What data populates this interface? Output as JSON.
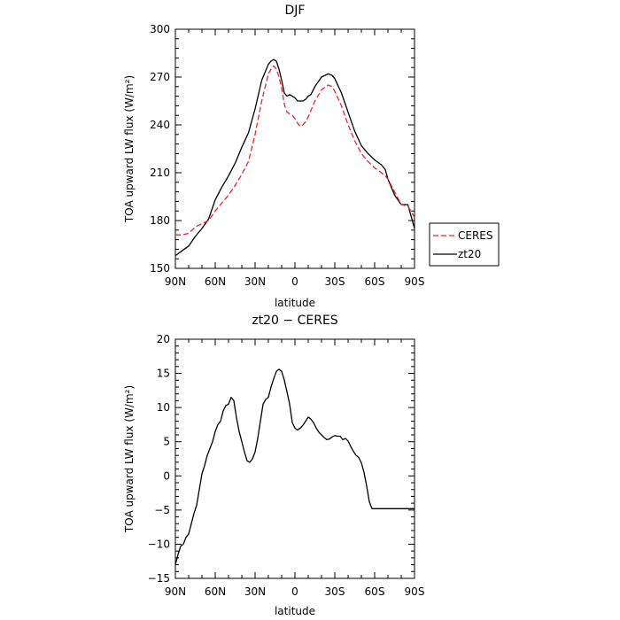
{
  "chart_data": [
    {
      "type": "line",
      "title": "DJF",
      "xlabel": "latitude",
      "ylabel": "TOA upward LW flux (W/m²)",
      "xlim": [
        -90,
        90
      ],
      "ylim": [
        150,
        300
      ],
      "xticks": [
        -90,
        -60,
        -30,
        0,
        30,
        60,
        90
      ],
      "xtick_labels": [
        "90N",
        "60N",
        "30N",
        "0",
        "30S",
        "60S",
        "90S"
      ],
      "yticks": [
        150,
        180,
        210,
        240,
        270,
        300
      ],
      "ytick_labels": [
        "150",
        "180",
        "210",
        "240",
        "270",
        "300"
      ],
      "legend_position": "right",
      "series": [
        {
          "name": "CERES",
          "color": "#e8262a",
          "dash": "dashed",
          "x": [
            -90,
            -85,
            -80,
            -75,
            -70,
            -65,
            -60,
            -55,
            -50,
            -45,
            -40,
            -35,
            -30,
            -25,
            -20,
            -18,
            -16,
            -14,
            -12,
            -10,
            -8,
            -6,
            -4,
            -2,
            0,
            2,
            4,
            6,
            8,
            10,
            12,
            15,
            20,
            25,
            28,
            30,
            35,
            40,
            45,
            50,
            55,
            60,
            65,
            68,
            70,
            75,
            80,
            85,
            88,
            90
          ],
          "values": [
            171,
            171,
            172,
            176,
            178,
            180,
            186,
            191,
            196,
            202,
            209,
            217,
            234,
            255,
            272,
            275,
            277,
            275,
            270,
            263,
            253,
            248,
            247,
            246,
            244,
            241,
            239,
            240,
            242,
            245,
            249,
            255,
            262,
            265,
            264,
            261,
            252,
            240,
            230,
            222,
            217,
            213,
            210,
            208,
            206,
            198,
            190,
            189,
            185,
            182
          ]
        },
        {
          "name": "zt20",
          "color": "#000000",
          "dash": "solid",
          "x": [
            -90,
            -85,
            -80,
            -75,
            -70,
            -65,
            -60,
            -55,
            -50,
            -45,
            -40,
            -35,
            -30,
            -25,
            -20,
            -18,
            -16,
            -14,
            -12,
            -10,
            -8,
            -6,
            -4,
            -2,
            0,
            2,
            4,
            6,
            8,
            10,
            12,
            15,
            20,
            25,
            28,
            30,
            35,
            40,
            45,
            50,
            55,
            60,
            65,
            68,
            70,
            75,
            80,
            85,
            88,
            90
          ],
          "values": [
            158,
            161,
            164,
            170,
            175,
            181,
            193,
            201,
            208,
            216,
            226,
            235,
            250,
            268,
            278,
            280,
            281,
            280,
            275,
            268,
            260,
            258,
            259,
            258,
            257,
            255,
            255,
            255,
            256,
            258,
            259,
            264,
            270,
            272,
            271,
            269,
            260,
            248,
            236,
            227,
            222,
            218,
            215,
            212,
            206,
            196,
            190,
            190,
            181,
            175
          ]
        }
      ]
    },
    {
      "type": "line",
      "title": "zt20 − CERES",
      "xlabel": "latitude",
      "ylabel": "TOA upward LW flux (W/m²)",
      "xlim": [
        -90,
        90
      ],
      "ylim": [
        -15,
        20
      ],
      "xticks": [
        -90,
        -60,
        -30,
        0,
        30,
        60,
        90
      ],
      "xtick_labels": [
        "90N",
        "60N",
        "30N",
        "0",
        "30S",
        "60S",
        "90S"
      ],
      "yticks": [
        -15,
        -10,
        -5,
        0,
        5,
        10,
        15,
        20
      ],
      "ytick_labels": [
        "−15",
        "−10",
        "−5",
        "0",
        "5",
        "10",
        "15",
        "20"
      ],
      "series": [
        {
          "color": "#000000",
          "dash": "solid",
          "x": [
            -90,
            -88,
            -86,
            -84,
            -82,
            -80,
            -78,
            -76,
            -74,
            -72,
            -70,
            -68,
            -66,
            -64,
            -62,
            -60,
            -58,
            -56,
            -54,
            -52,
            -50,
            -48,
            -46,
            -44,
            -42,
            -40,
            -38,
            -36,
            -34,
            -32,
            -30,
            -28,
            -26,
            -24,
            -22,
            -20,
            -18,
            -16,
            -14,
            -12,
            -10,
            -8,
            -6,
            -4,
            -2,
            0,
            2,
            4,
            6,
            8,
            10,
            12,
            14,
            16,
            18,
            20,
            22,
            24,
            26,
            28,
            30,
            32,
            34,
            36,
            38,
            40,
            42,
            44,
            46,
            48,
            50,
            52,
            54,
            56,
            58,
            60,
            62,
            64,
            66,
            68,
            70,
            72,
            74,
            76,
            78,
            80,
            82,
            84,
            86,
            88,
            90
          ],
          "values": [
            -13,
            -11.5,
            -10.3,
            -10,
            -9,
            -8.5,
            -7,
            -5.5,
            -4.3,
            -2,
            0.3,
            1.5,
            3,
            4,
            5,
            6.5,
            7.5,
            8,
            9.5,
            10.3,
            10.5,
            11.5,
            11,
            8.5,
            6.5,
            5,
            3.5,
            2.2,
            2,
            2.5,
            3.5,
            5.5,
            8,
            10.5,
            11.2,
            11.5,
            13,
            14.2,
            15.3,
            15.6,
            15.3,
            14,
            12.3,
            10.5,
            7.8,
            7,
            6.7,
            7,
            7.4,
            8,
            8.6,
            8.3,
            7.8,
            7,
            6.4,
            6,
            5.6,
            5.3,
            5.4,
            5.7,
            5.9,
            5.8,
            5.8,
            5.3,
            5.5,
            5.1,
            4.3,
            3.6,
            3,
            2.7,
            1.9,
            0.5,
            -1.5,
            -3.8,
            -4.8,
            -4.8,
            -4.8,
            -4.8,
            -4.8,
            -4.8,
            -4.8,
            -4.8,
            -4.8,
            -4.8,
            -4.8,
            -4.8,
            -4.8,
            -4.8,
            -4.8,
            -4.8,
            -4.8
          ]
        }
      ]
    }
  ]
}
